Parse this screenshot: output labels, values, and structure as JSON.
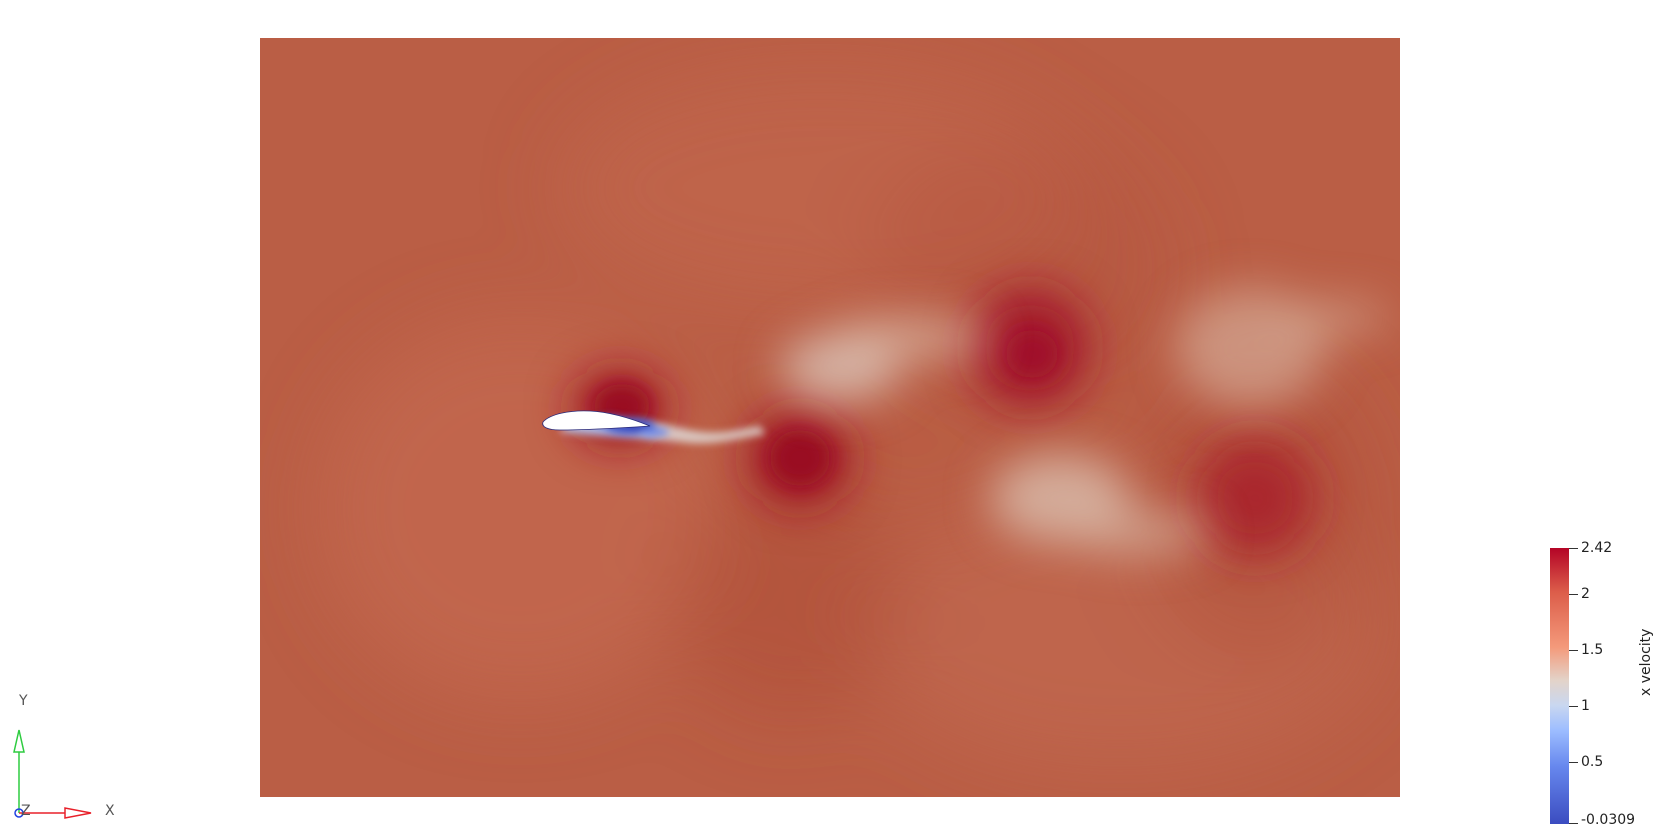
{
  "render_view": {
    "field_name": "x velocity",
    "colormap": "Cool to Warm",
    "colors": {
      "background": "#ffffff",
      "freestream": "#ba5e45",
      "high": "#a01525",
      "low": "#3b4cc0",
      "mid": "#dcc6bb",
      "body": "#ffffff"
    }
  },
  "axes": {
    "x_label": "X",
    "y_label": "Y",
    "z_label": "Z",
    "x_color": "#e8202a",
    "y_color": "#2ecc40",
    "z_color": "#2040e0"
  },
  "colorbar": {
    "title": "x velocity",
    "min_label": "-0.0309",
    "max_label": "2.42",
    "ticks": [
      "2",
      "1.5",
      "1",
      "0.5"
    ]
  }
}
